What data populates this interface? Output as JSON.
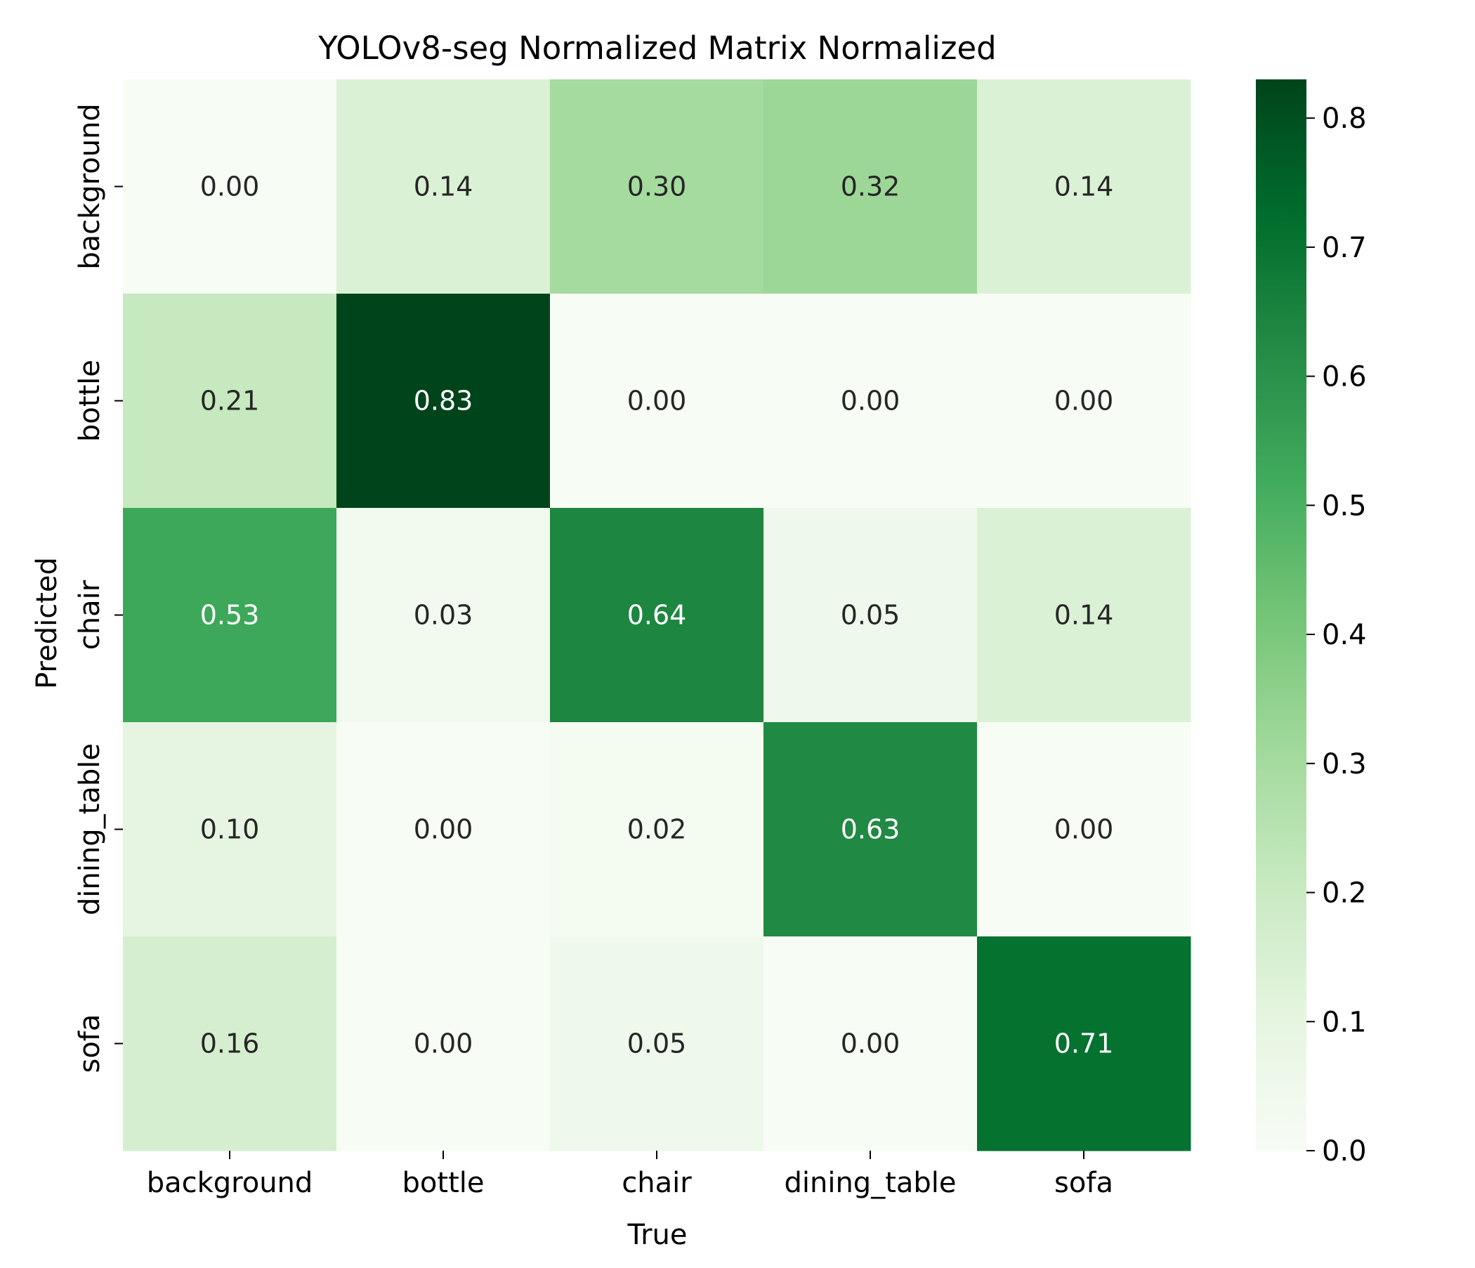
{
  "chart_data": {
    "type": "heatmap",
    "title": "YOLOv8-seg Normalized Matrix Normalized",
    "xlabel": "True",
    "ylabel": "Predicted",
    "x_categories": [
      "background",
      "bottle",
      "chair",
      "dining_table",
      "sofa"
    ],
    "y_categories": [
      "background",
      "bottle",
      "chair",
      "dining_table",
      "sofa"
    ],
    "values": [
      [
        0.0,
        0.14,
        0.3,
        0.32,
        0.14
      ],
      [
        0.21,
        0.83,
        0.0,
        0.0,
        0.0
      ],
      [
        0.53,
        0.03,
        0.64,
        0.05,
        0.14
      ],
      [
        0.1,
        0.0,
        0.02,
        0.63,
        0.0
      ],
      [
        0.16,
        0.0,
        0.05,
        0.0,
        0.71
      ]
    ],
    "value_format": "0.00",
    "colormap": "Greens",
    "colorbar": {
      "vmin": 0.0,
      "vmax": 0.83,
      "ticks": [
        0.0,
        0.1,
        0.2,
        0.3,
        0.4,
        0.5,
        0.6,
        0.7,
        0.8
      ],
      "tick_labels": [
        "0.0",
        "0.1",
        "0.2",
        "0.3",
        "0.4",
        "0.5",
        "0.6",
        "0.7",
        "0.8"
      ]
    },
    "colors": {
      "scale": [
        "#f7fcf5",
        "#e5f5e0",
        "#c7e9c0",
        "#a1d99b",
        "#74c476",
        "#41ab5d",
        "#238b45",
        "#006d2c",
        "#00441b"
      ],
      "light_text": "#ffffff",
      "dark_text": "#262626"
    }
  }
}
